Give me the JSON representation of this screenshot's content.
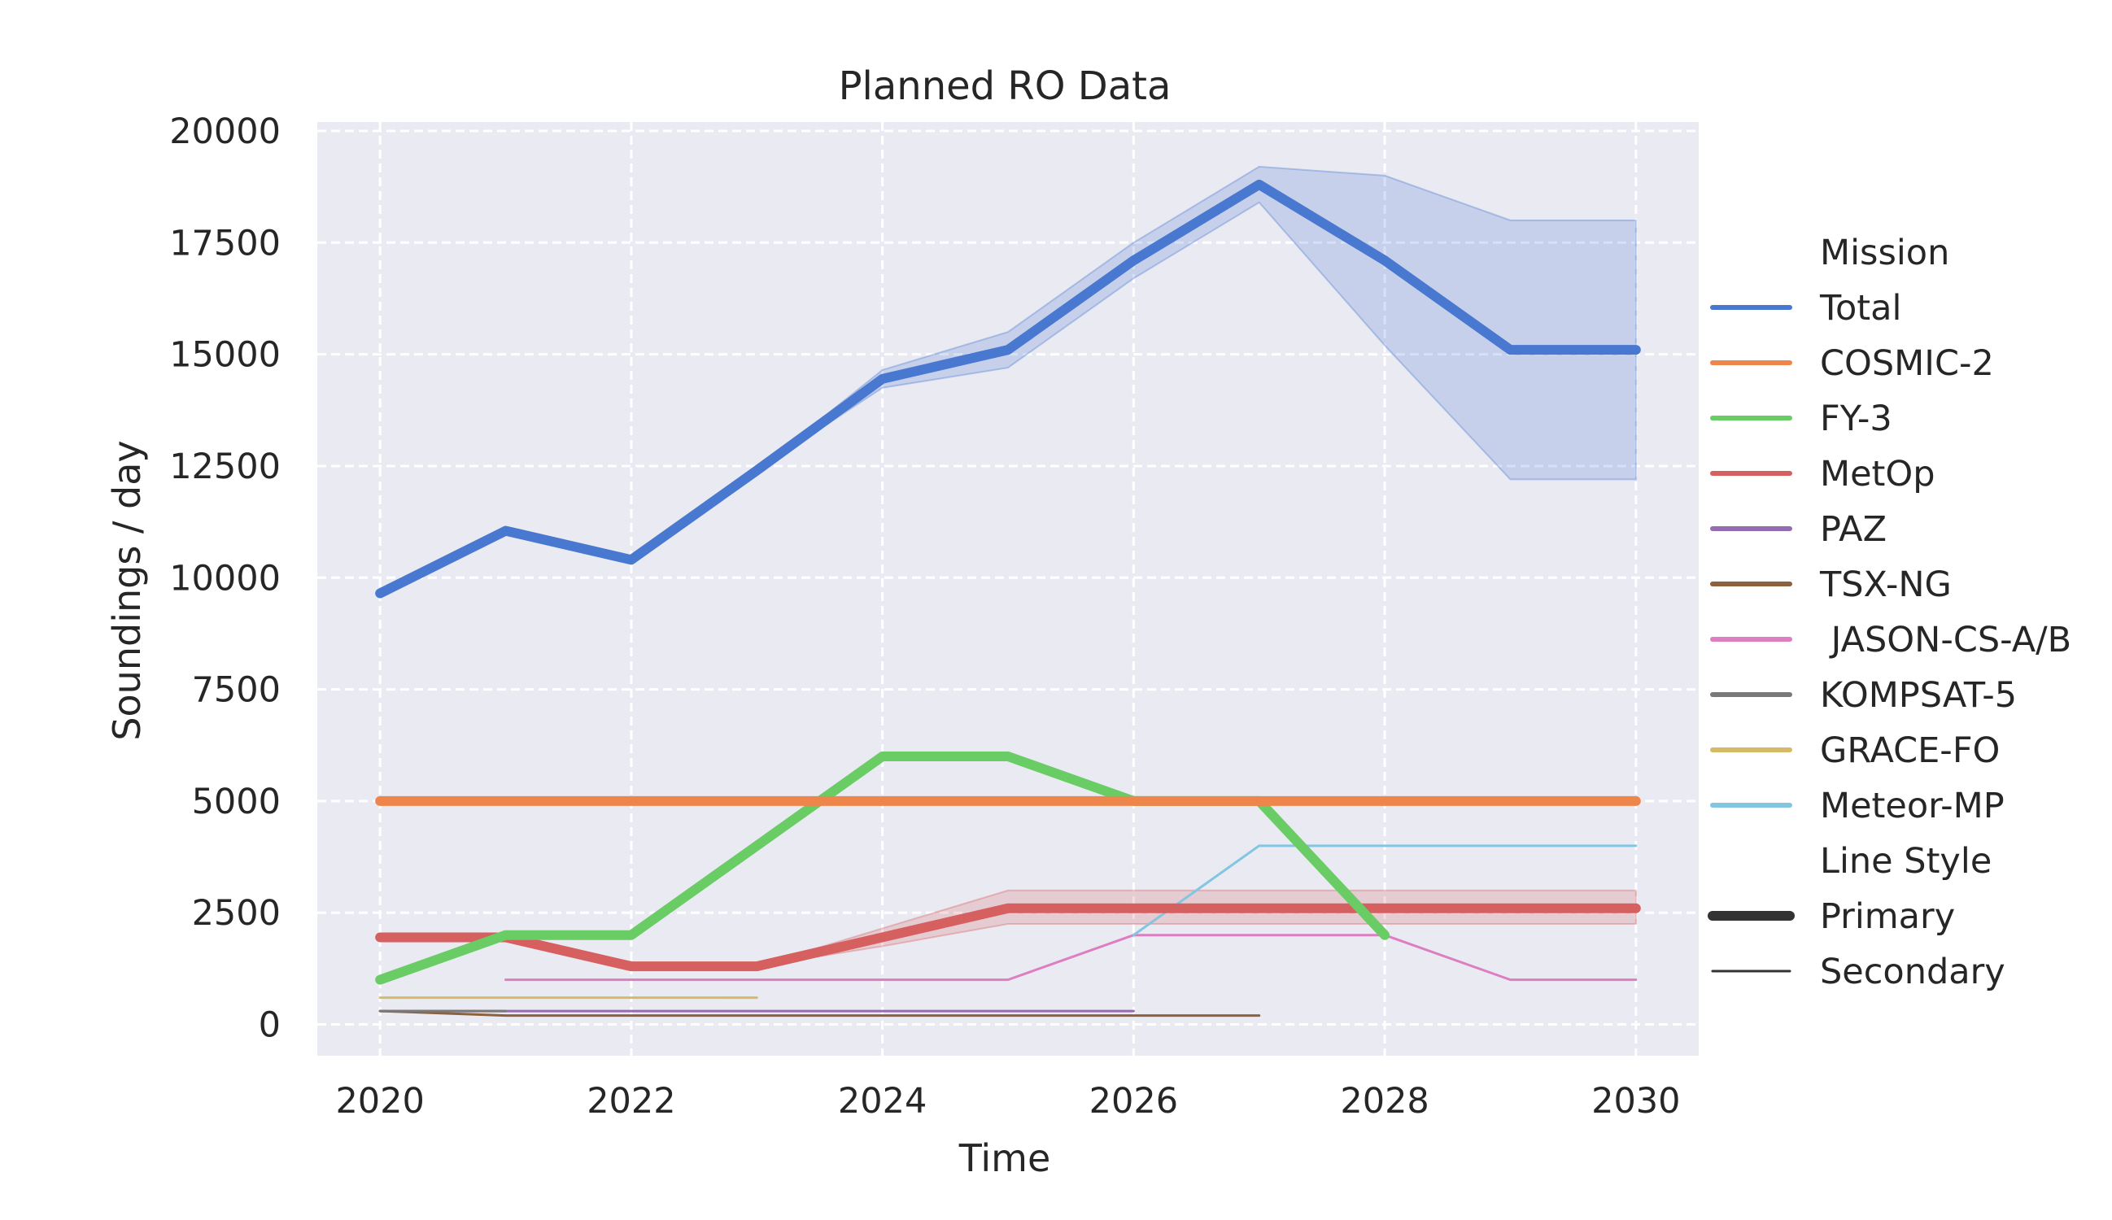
{
  "chart_data": {
    "type": "line",
    "title": "Planned RO Data",
    "xlabel": "Time",
    "ylabel": "Soundings / day",
    "xlim": [
      2019.5,
      2030.5
    ],
    "ylim": [
      -700,
      20200
    ],
    "xticks": [
      "2020",
      "2022",
      "2024",
      "2026",
      "2028",
      "2030"
    ],
    "yticks": [
      "0",
      "2500",
      "5000",
      "7500",
      "10000",
      "12500",
      "15000",
      "17500",
      "20000"
    ],
    "grid": true,
    "legend_position": "right",
    "legend_sections": [
      {
        "title": "Mission",
        "entries": [
          "Total",
          "COSMIC-2",
          "FY-3",
          "MetOp",
          "PAZ",
          "TSX-NG",
          " JASON-CS-A/B",
          "KOMPSAT-5",
          "GRACE-FO",
          "Meteor-MP"
        ]
      },
      {
        "title": "Line Style",
        "entries": [
          "Primary",
          "Secondary"
        ]
      }
    ],
    "series": [
      {
        "name": "Total",
        "style": "Primary",
        "color": "#4878d0",
        "x": [
          2020,
          2021,
          2022,
          2023,
          2024,
          2025,
          2026,
          2027,
          2028,
          2029,
          2030
        ],
        "y": [
          9650,
          11050,
          10400,
          12400,
          14450,
          15100,
          17100,
          18800,
          17100,
          15100,
          15100
        ],
        "band_low": [
          9650,
          11050,
          10400,
          12400,
          14250,
          14700,
          16700,
          18400,
          15200,
          12200,
          12200
        ],
        "band_high": [
          9650,
          11050,
          10400,
          12400,
          14650,
          15500,
          17500,
          19200,
          19000,
          18000,
          18000
        ]
      },
      {
        "name": "COSMIC-2",
        "style": "Primary",
        "color": "#ee854a",
        "x": [
          2020,
          2030
        ],
        "y": [
          5000,
          5000
        ]
      },
      {
        "name": "FY-3",
        "style": "Primary",
        "color": "#6acc64",
        "x": [
          2020,
          2021,
          2022,
          2023,
          2024,
          2025,
          2026,
          2027,
          2028
        ],
        "y": [
          1000,
          2000,
          2000,
          4000,
          6000,
          6000,
          5000,
          5000,
          2000
        ]
      },
      {
        "name": "MetOp",
        "style": "Primary",
        "color": "#d65f5f",
        "x": [
          2020,
          2021,
          2022,
          2023,
          2024,
          2025,
          2026,
          2027,
          2028,
          2029,
          2030
        ],
        "y": [
          1950,
          1950,
          1300,
          1300,
          1950,
          2600,
          2600,
          2600,
          2600,
          2600,
          2600
        ],
        "band_low": [
          1950,
          1950,
          1300,
          1300,
          1750,
          2250,
          2250,
          2250,
          2250,
          2250,
          2250
        ],
        "band_high": [
          1950,
          1950,
          1300,
          1300,
          2150,
          3000,
          3000,
          3000,
          3000,
          3000,
          3000
        ]
      },
      {
        "name": "PAZ",
        "style": "Secondary",
        "color": "#956cb4",
        "x": [
          2020,
          2026
        ],
        "y": [
          300,
          300
        ]
      },
      {
        "name": "TSX-NG",
        "style": "Secondary",
        "color": "#8c613c",
        "x": [
          2020,
          2021,
          2027
        ],
        "y": [
          300,
          200,
          200
        ]
      },
      {
        "name": " JASON-CS-A/B",
        "style": "Secondary",
        "color": "#dc7ec0",
        "x": [
          2021,
          2025,
          2026,
          2028,
          2029,
          2030
        ],
        "y": [
          1000,
          1000,
          2000,
          2000,
          1000,
          1000
        ]
      },
      {
        "name": "KOMPSAT-5",
        "style": "Secondary",
        "color": "#797979",
        "x": [
          2020,
          2021
        ],
        "y": [
          300,
          300
        ]
      },
      {
        "name": "GRACE-FO",
        "style": "Secondary",
        "color": "#d5bb67",
        "x": [
          2020,
          2023
        ],
        "y": [
          600,
          600
        ]
      },
      {
        "name": "Meteor-MP",
        "style": "Secondary",
        "color": "#82c6e2",
        "x": [
          2026,
          2027,
          2030
        ],
        "y": [
          2000,
          4000,
          4000
        ]
      }
    ]
  }
}
